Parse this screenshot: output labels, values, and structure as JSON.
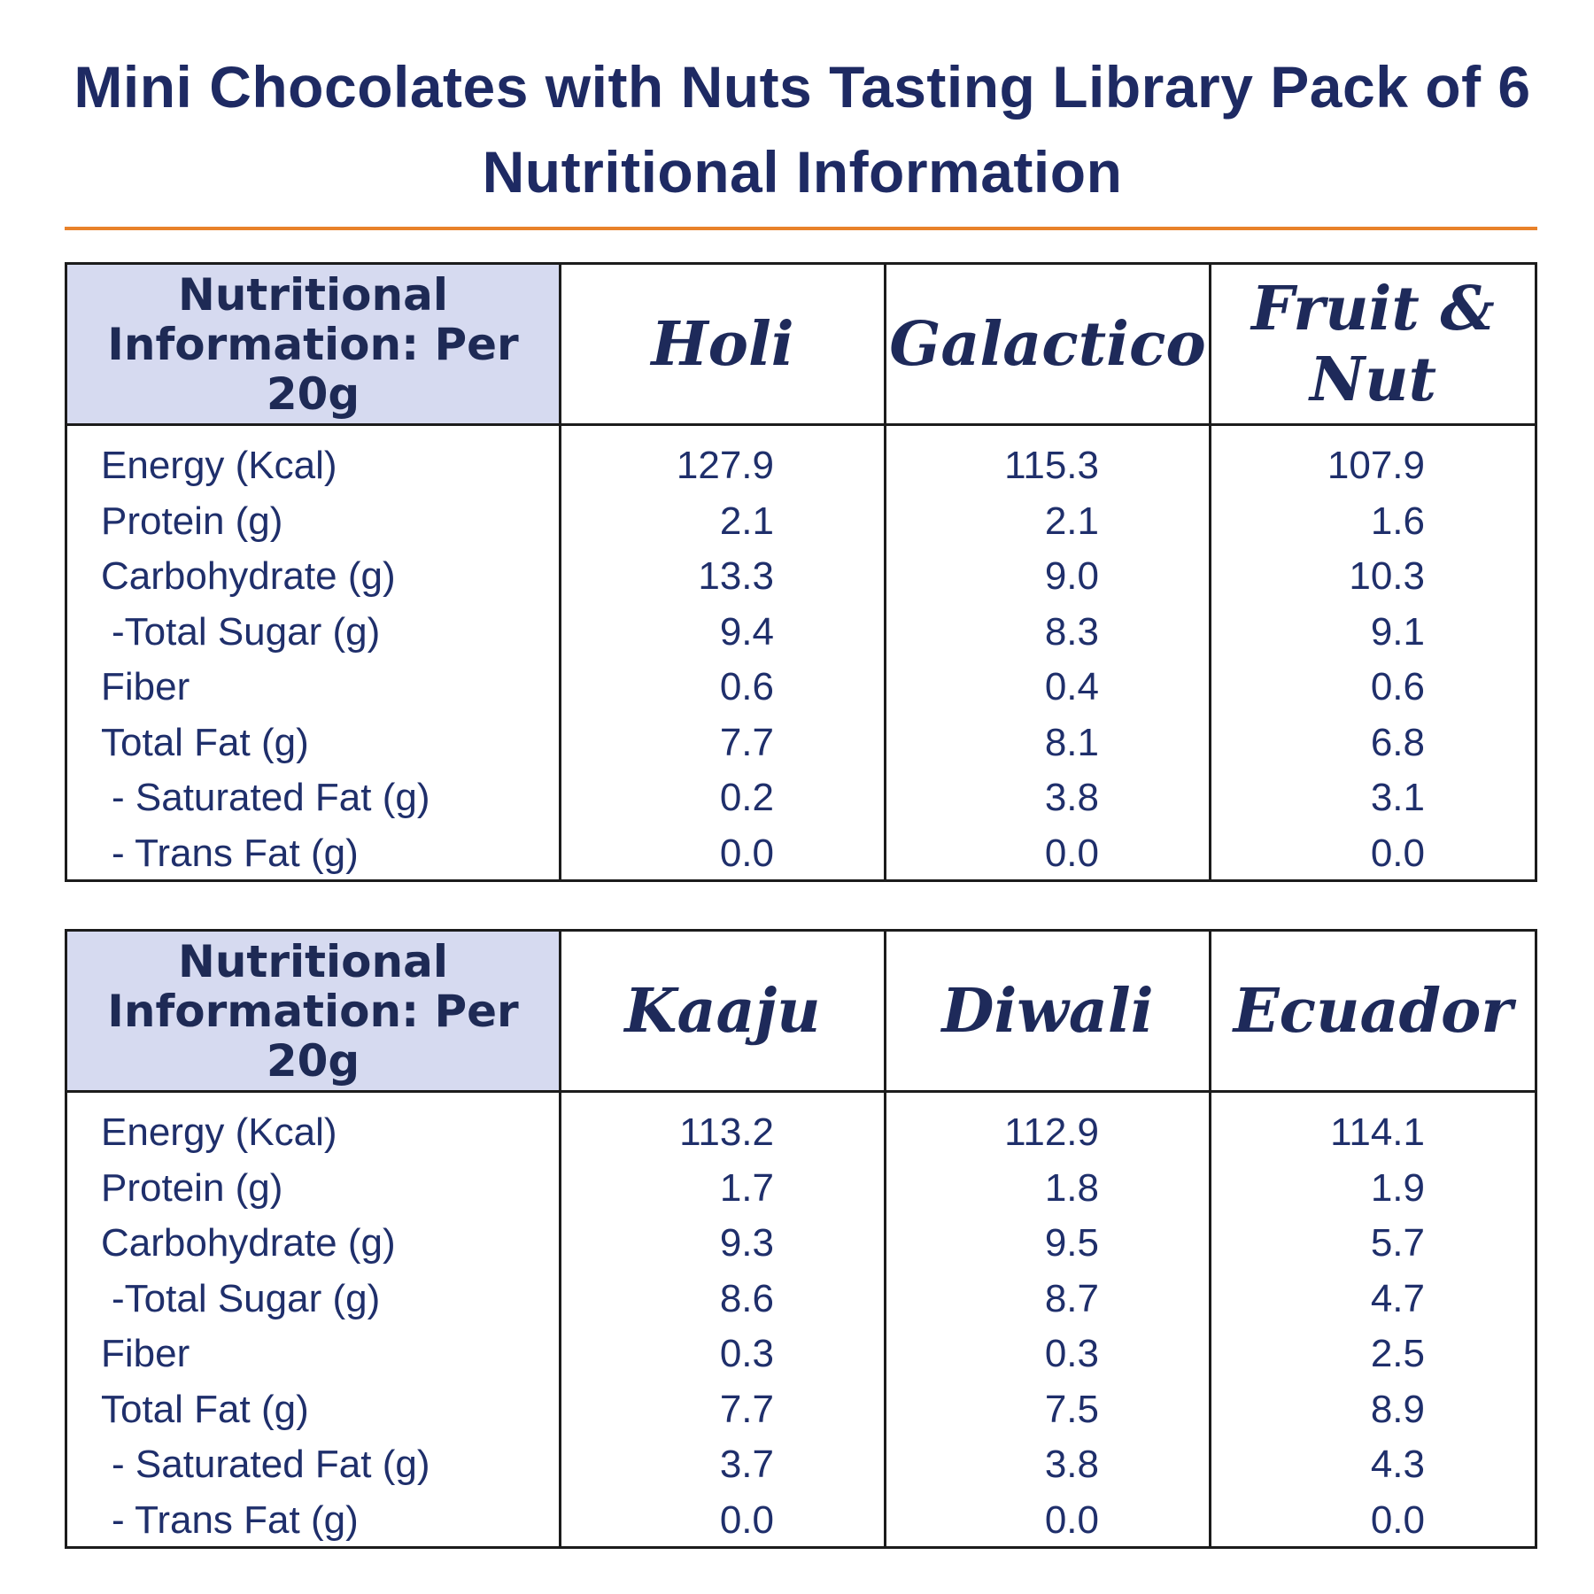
{
  "title": {
    "line1": "Mini Chocolates with Nuts Tasting Library Pack of 6",
    "line2": "Nutritional Information"
  },
  "colors": {
    "accent_rule": "#e8822a",
    "header_fill": "#d6daf0",
    "text": "#1f2a5c"
  },
  "row_labels": [
    "Energy (Kcal)",
    "Protein (g)",
    "Carbohydrate (g)",
    " -Total Sugar (g)",
    "Fiber",
    "Total Fat (g)",
    " - Saturated Fat (g)",
    " - Trans Fat (g)"
  ],
  "tables": [
    {
      "header_label": "Nutritional\nInformation: Per 20g",
      "products": [
        {
          "name": "Holi",
          "values": [
            "127.9",
            "2.1",
            "13.3",
            "9.4",
            "0.6",
            "7.7",
            "0.2",
            "0.0"
          ]
        },
        {
          "name": "Galactico",
          "values": [
            "115.3",
            "2.1",
            "9.0",
            "8.3",
            "0.4",
            "8.1",
            "3.8",
            "0.0"
          ]
        },
        {
          "name": "Fruit & Nut",
          "values": [
            "107.9",
            "1.6",
            "10.3",
            "9.1",
            "0.6",
            "6.8",
            "3.1",
            "0.0"
          ]
        }
      ]
    },
    {
      "header_label": "Nutritional\nInformation: Per 20g",
      "products": [
        {
          "name": "Kaaju",
          "values": [
            "113.2",
            "1.7",
            "9.3",
            "8.6",
            "0.3",
            "7.7",
            "3.7",
            "0.0"
          ]
        },
        {
          "name": "Diwali",
          "values": [
            "112.9",
            "1.8",
            "9.5",
            "8.7",
            "0.3",
            "7.5",
            "3.8",
            "0.0"
          ]
        },
        {
          "name": "Ecuador",
          "values": [
            "114.1",
            "1.9",
            "5.7",
            "4.7",
            "2.5",
            "8.9",
            "4.3",
            "0.0"
          ]
        }
      ]
    }
  ]
}
